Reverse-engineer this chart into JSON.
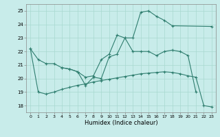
{
  "background_color": "#c8ecea",
  "grid_color": "#a8d8d0",
  "line_color": "#2e7d6e",
  "xlim": [
    -0.5,
    23.5
  ],
  "ylim": [
    17.5,
    25.5
  ],
  "xticks": [
    0,
    1,
    2,
    3,
    4,
    5,
    6,
    7,
    8,
    9,
    10,
    11,
    12,
    13,
    14,
    15,
    16,
    17,
    18,
    19,
    20,
    21,
    22,
    23
  ],
  "yticks": [
    18,
    19,
    20,
    21,
    22,
    23,
    24,
    25
  ],
  "xlabel": "Humidex (Indice chaleur)",
  "line1_x": [
    0,
    1,
    2,
    3,
    4,
    5,
    6,
    7,
    8,
    9,
    10,
    11,
    12,
    13,
    14,
    15,
    16,
    17,
    18,
    19,
    20,
    21
  ],
  "line1_y": [
    22.2,
    21.4,
    21.1,
    21.1,
    20.8,
    20.7,
    20.5,
    20.1,
    20.2,
    21.4,
    21.8,
    23.2,
    23.0,
    22.0,
    22.0,
    22.0,
    21.7,
    22.0,
    22.1,
    22.0,
    21.7,
    19.0
  ],
  "line2_x": [
    4,
    5,
    6,
    7,
    8,
    9,
    10,
    11,
    12,
    13,
    14,
    15,
    16,
    17,
    18,
    23
  ],
  "line2_y": [
    20.8,
    20.7,
    20.5,
    19.5,
    20.1,
    20.0,
    21.6,
    21.8,
    23.0,
    23.0,
    24.9,
    25.0,
    24.6,
    24.3,
    23.9,
    23.85
  ],
  "line3_x": [
    0,
    1,
    2,
    3,
    4,
    5,
    6,
    7,
    8,
    9,
    10,
    11,
    12,
    13,
    14,
    15,
    16,
    17,
    18,
    19,
    20,
    21,
    22,
    23
  ],
  "line3_y": [
    22.2,
    19.0,
    18.85,
    19.0,
    19.2,
    19.35,
    19.5,
    19.6,
    19.75,
    19.85,
    19.95,
    20.05,
    20.15,
    20.25,
    20.35,
    20.4,
    20.45,
    20.5,
    20.45,
    20.35,
    20.2,
    20.1,
    18.0,
    17.9
  ]
}
